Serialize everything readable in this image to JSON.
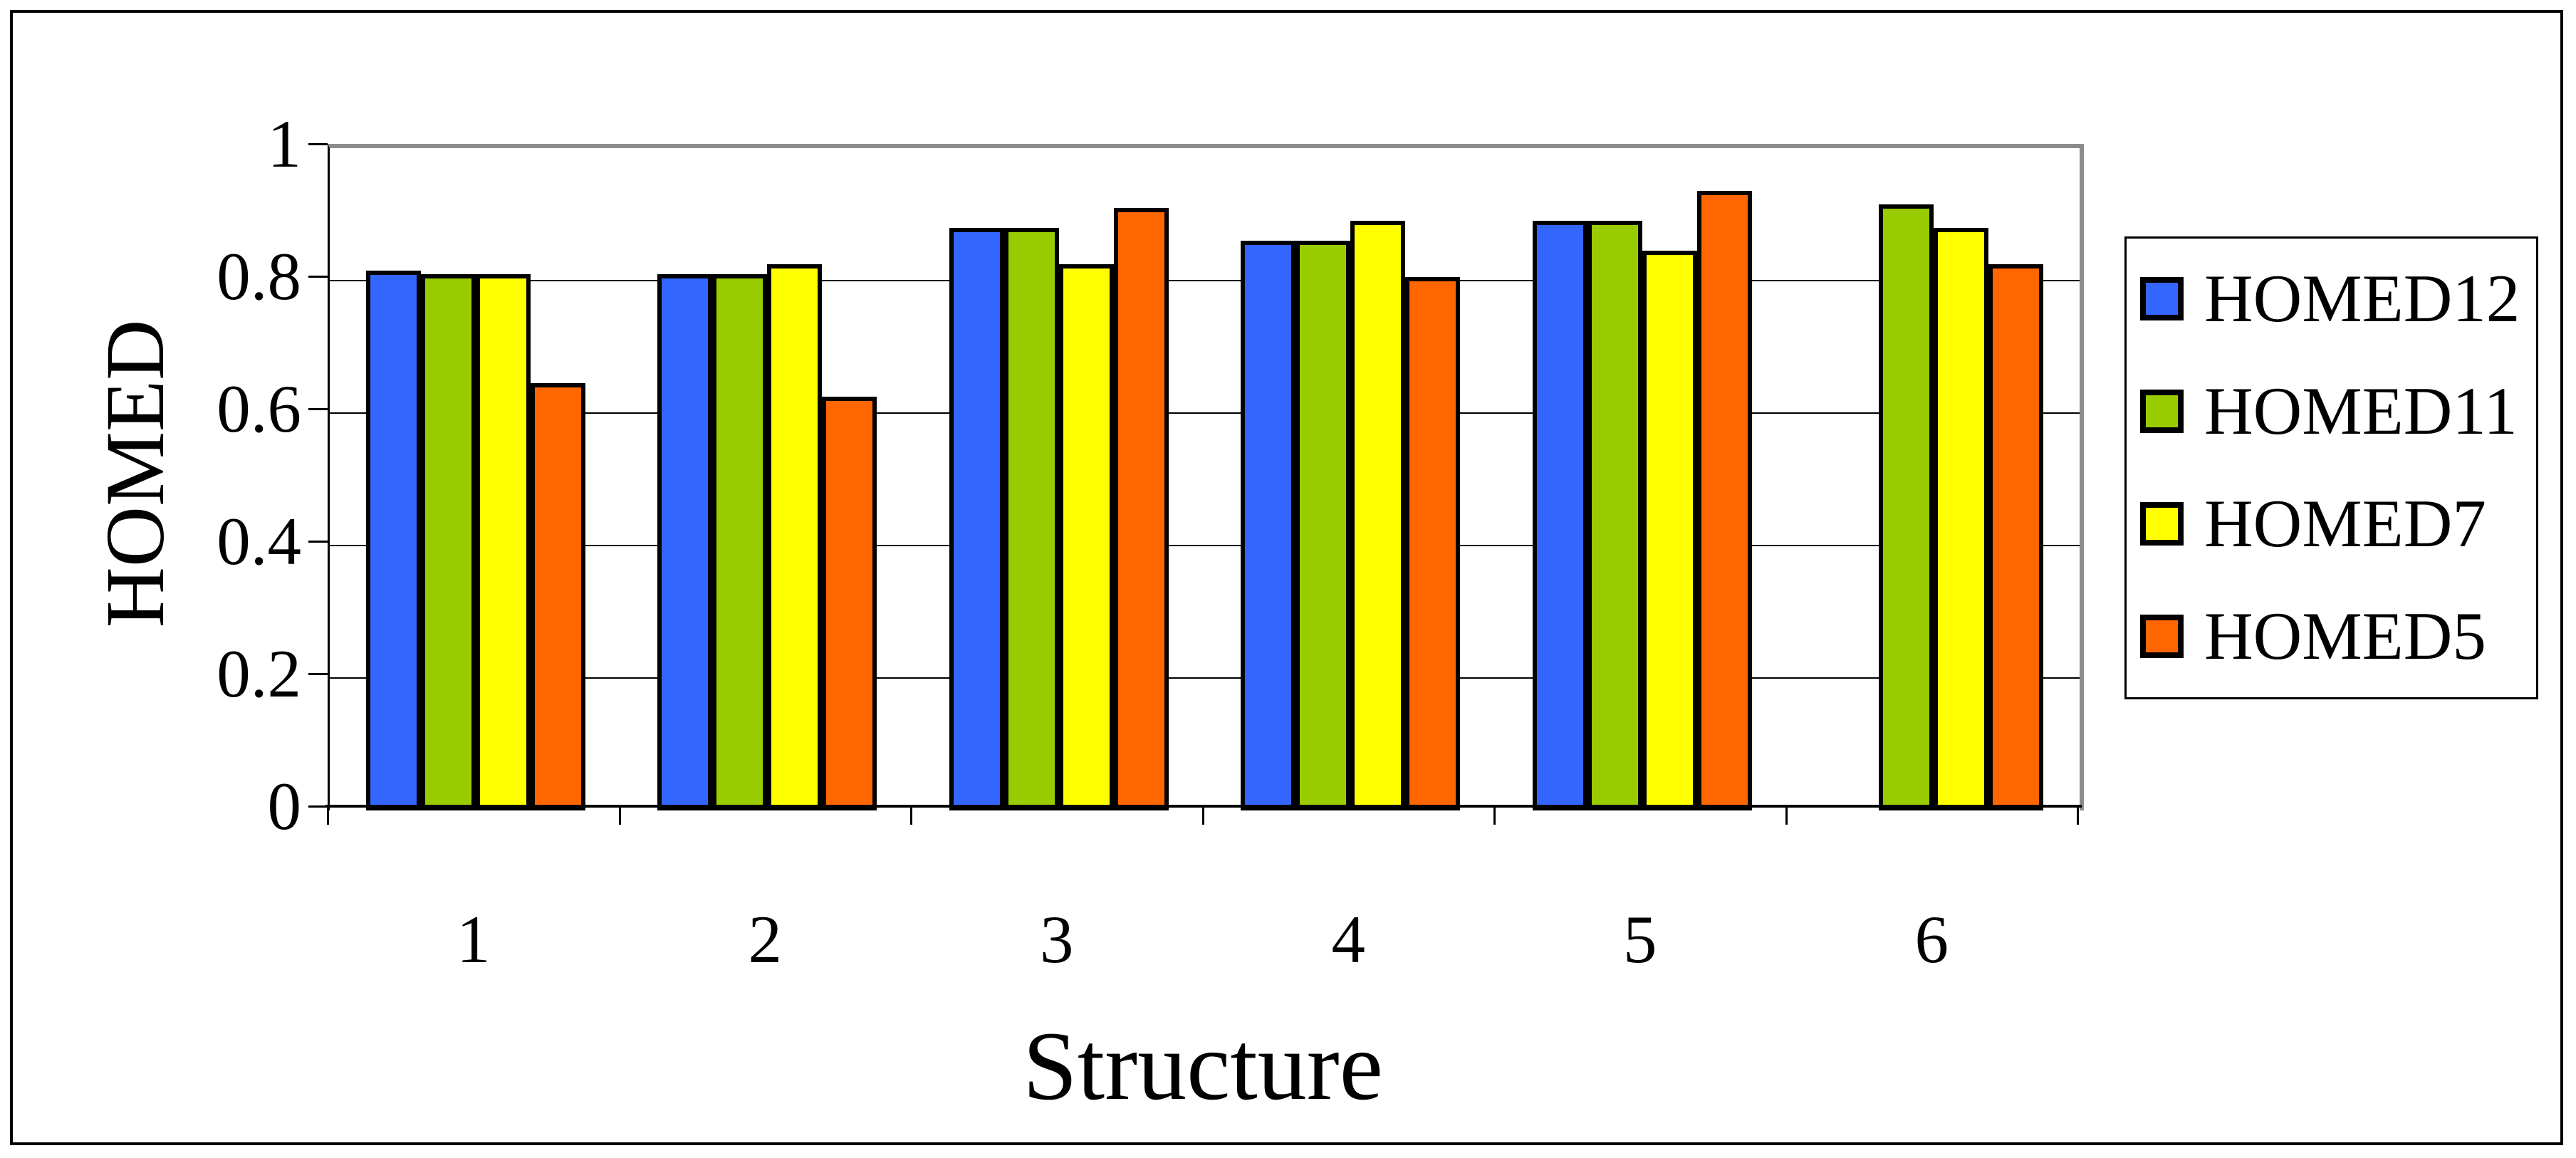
{
  "chart_data": {
    "type": "bar",
    "title": "",
    "xlabel": "Structure",
    "ylabel": "HOMED",
    "categories": [
      "1",
      "2",
      "3",
      "4",
      "5",
      "6"
    ],
    "series": [
      {
        "name": "HOMED12",
        "color": "#3366FF",
        "values": [
          0.815,
          0.81,
          0.88,
          0.86,
          0.89,
          null
        ]
      },
      {
        "name": "HOMED11",
        "color": "#99CC00",
        "values": [
          0.81,
          0.81,
          0.88,
          0.86,
          0.89,
          0.915
        ]
      },
      {
        "name": "HOMED7",
        "color": "#FFFF00",
        "values": [
          0.81,
          0.825,
          0.825,
          0.89,
          0.845,
          0.88
        ]
      },
      {
        "name": "HOMED5",
        "color": "#FF6600",
        "values": [
          0.645,
          0.625,
          0.91,
          0.805,
          0.935,
          0.825
        ]
      }
    ],
    "ylim": [
      0,
      1
    ],
    "yticks": [
      {
        "value": 0,
        "label": "0"
      },
      {
        "value": 0.2,
        "label": "0.2"
      },
      {
        "value": 0.4,
        "label": "0.4"
      },
      {
        "value": 0.6,
        "label": "0.6"
      },
      {
        "value": 0.8,
        "label": "0.8"
      },
      {
        "value": 1,
        "label": "1"
      }
    ],
    "grid": true,
    "legend_position": "right",
    "frame_color": "#8C8C8C"
  }
}
